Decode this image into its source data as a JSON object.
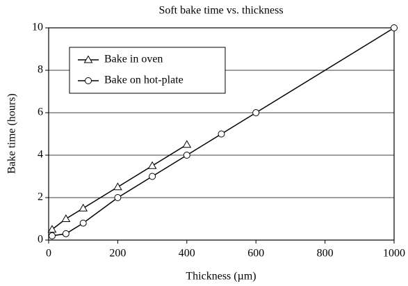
{
  "chart_data": {
    "type": "line",
    "title": "Soft bake time vs. thickness",
    "xlabel": "Thickness (µm)",
    "ylabel": "Bake time (hours)",
    "xlim": [
      0,
      1000
    ],
    "xticks": [
      0,
      200,
      400,
      600,
      800,
      1000
    ],
    "ylim": [
      0,
      10
    ],
    "yticks": [
      0,
      2,
      4,
      6,
      8,
      10
    ],
    "grid": true,
    "legend": "upper left",
    "series": [
      {
        "name": "Bake in oven",
        "color": "#000000",
        "marker": "triangle",
        "x": [
          10,
          50,
          100,
          200,
          300,
          400
        ],
        "values": [
          0.5,
          1.0,
          1.5,
          2.5,
          3.5,
          4.5
        ]
      },
      {
        "name": "Bake on hot-plate",
        "color": "#000000",
        "marker": "circle",
        "x": [
          10,
          50,
          100,
          200,
          300,
          400,
          500,
          600,
          1000
        ],
        "values": [
          0.2,
          0.3,
          0.8,
          2.0,
          3.0,
          4.0,
          5.0,
          6.0,
          10.0
        ]
      }
    ]
  }
}
